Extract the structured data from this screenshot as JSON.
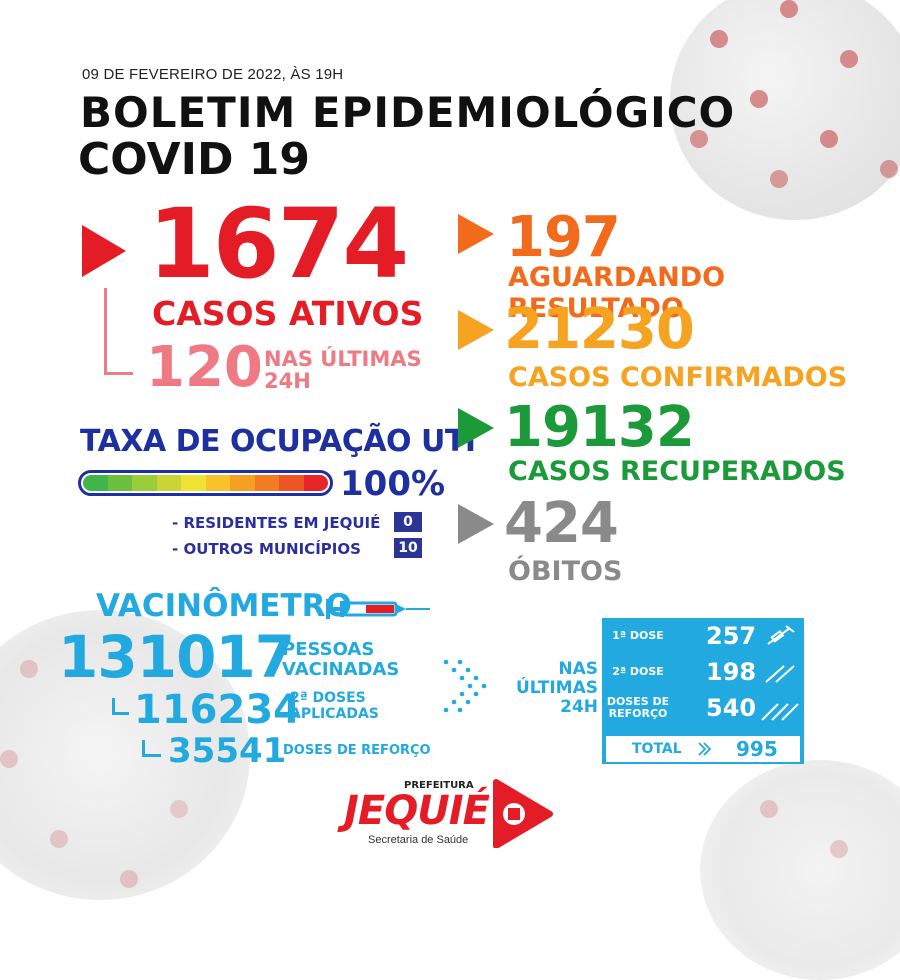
{
  "header": {
    "date": "09 DE FEVEREIRO DE 2022, ÀS 19H",
    "title": "BOLETIM EPIDEMIOLÓGICO",
    "subtitle": "COVID 19"
  },
  "ativos": {
    "value": "1674",
    "label": "CASOS ATIVOS",
    "last24_value": "120",
    "last24_label_1": "NAS ÚLTIMAS",
    "last24_label_2": "24H"
  },
  "uti": {
    "title": "TAXA DE OCUPAÇÃO UTI",
    "percent": "100%",
    "occupancy_fraction": 1.0,
    "bar_colors": [
      "#3fb54a",
      "#6cc03d",
      "#9ccc3a",
      "#c8d534",
      "#f0e233",
      "#f7c22c",
      "#f5a023",
      "#f27c22",
      "#ee5524",
      "#e6262a"
    ],
    "rows": [
      {
        "label": "- RESIDENTES EM JEQUIÉ",
        "value": "0"
      },
      {
        "label": "- OUTROS MUNICÍPIOS",
        "value": "10"
      }
    ]
  },
  "stats": [
    {
      "value": "197",
      "label": "AGUARDANDO RESULTADO",
      "color": "#f26a1b"
    },
    {
      "value": "21230",
      "label": "CASOS CONFIRMADOS",
      "color": "#f5a321"
    },
    {
      "value": "19132",
      "label": "CASOS RECUPERADOS",
      "color": "#1c9a3a"
    },
    {
      "value": "424",
      "label": "ÓBITOS",
      "color": "#8a8a8a"
    }
  ],
  "vacina": {
    "title": "VACINÔMETRO",
    "total_value": "131017",
    "total_label_1": "PESSOAS",
    "total_label_2": "VACINADAS",
    "dose2_value": "116234",
    "dose2_label_1": "2ª DOSES",
    "dose2_label_2": "APLICADAS",
    "ref_value": "35541",
    "ref_label": "DOSES DE REFORÇO"
  },
  "last24": {
    "label_1": "NAS",
    "label_2": "ÚLTIMAS",
    "label_3": "24H",
    "rows": [
      {
        "label": "1ª DOSE",
        "value": "257"
      },
      {
        "label": "2ª DOSE",
        "value": "198"
      },
      {
        "label": "DOSES DE REFORÇO",
        "value": "540"
      }
    ],
    "total_label": "TOTAL",
    "total_value": "995"
  },
  "logo": {
    "top": "PREFEITURA",
    "name": "JEQUIÉ",
    "sub": "Secretaria de Saúde"
  }
}
